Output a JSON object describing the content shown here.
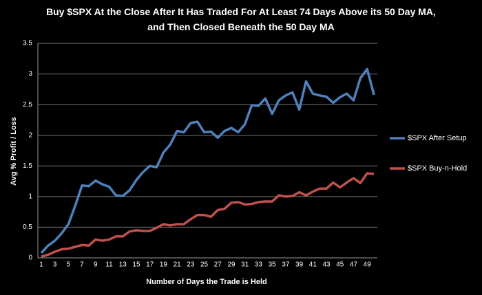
{
  "chart_data": {
    "type": "line",
    "title": "Buy $SPX At the Close After It Has Traded For At Least 74 Days Above its 50 Day MA, and Then Closed Beneath the 50 Day MA",
    "x_label": "Number of Days the Trade is Held",
    "y_label": "Avg % Profit / Loss",
    "categories": [
      1,
      null,
      3,
      null,
      5,
      null,
      7,
      null,
      9,
      null,
      11,
      null,
      13,
      null,
      15,
      null,
      17,
      null,
      19,
      null,
      21,
      null,
      23,
      null,
      25,
      null,
      27,
      null,
      29,
      null,
      31,
      null,
      33,
      null,
      35,
      null,
      37,
      null,
      39,
      null,
      41,
      null,
      43,
      null,
      45,
      null,
      47,
      null,
      49,
      null
    ],
    "series": [
      {
        "name": "$SPX After Setup",
        "color": "#4f81bd",
        "values": [
          0.08,
          0.2,
          0.28,
          0.4,
          0.55,
          0.85,
          1.18,
          1.17,
          1.26,
          1.2,
          1.16,
          1.02,
          1.01,
          1.1,
          1.27,
          1.4,
          1.5,
          1.48,
          1.72,
          1.85,
          2.07,
          2.05,
          2.2,
          2.22,
          2.05,
          2.06,
          1.96,
          2.07,
          2.12,
          2.05,
          2.18,
          2.49,
          2.48,
          2.6,
          2.35,
          2.57,
          2.65,
          2.7,
          2.42,
          2.88,
          2.68,
          2.65,
          2.63,
          2.53,
          2.62,
          2.68,
          2.57,
          2.93,
          3.08,
          2.66
        ]
      },
      {
        "name": "$SPX Buy-n-Hold",
        "color": "#c0504d",
        "values": [
          0.02,
          0.05,
          0.1,
          0.14,
          0.15,
          0.18,
          0.21,
          0.2,
          0.3,
          0.28,
          0.3,
          0.35,
          0.35,
          0.43,
          0.45,
          0.44,
          0.44,
          0.49,
          0.55,
          0.53,
          0.55,
          0.55,
          0.63,
          0.7,
          0.7,
          0.67,
          0.78,
          0.8,
          0.9,
          0.91,
          0.87,
          0.88,
          0.91,
          0.92,
          0.92,
          1.02,
          1.0,
          1.01,
          1.07,
          1.02,
          1.08,
          1.13,
          1.13,
          1.23,
          1.15,
          1.23,
          1.3,
          1.22,
          1.38,
          1.37
        ]
      }
    ],
    "ylim": [
      0,
      3.5
    ],
    "yticks": [
      0,
      0.5,
      1,
      1.5,
      2,
      2.5,
      3,
      3.5
    ],
    "grid": true,
    "legend": "right"
  }
}
